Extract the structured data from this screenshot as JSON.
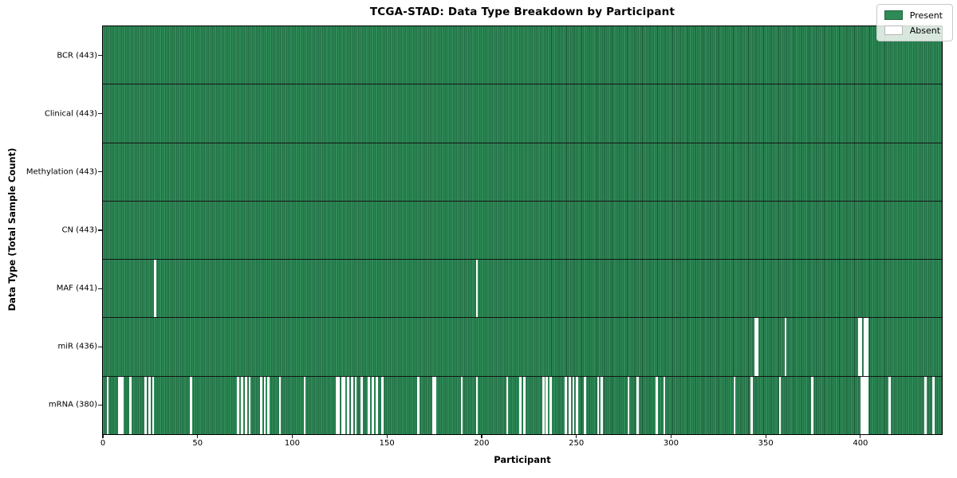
{
  "title": "TCGA-STAD: Data Type Breakdown by Participant",
  "chart_data": {
    "type": "heatmap",
    "title": "TCGA-STAD: Data Type Breakdown by Participant",
    "xlabel": "Participant",
    "ylabel": "Data Type (Total Sample Count)",
    "x_ticks": [
      0,
      50,
      100,
      150,
      200,
      250,
      300,
      350,
      400
    ],
    "x_range": [
      0,
      443
    ],
    "n_participants": 443,
    "grid": false,
    "legend_position": "upper-right",
    "colors": {
      "present": "#2e8b57",
      "present_edge": "#1b5134",
      "absent": "#ffffff",
      "row_divider": "#141414",
      "legend_bg": "#f2f2f2",
      "legend_border": "#c9c9c9"
    },
    "legend": [
      {
        "label": "Present",
        "value": "present"
      },
      {
        "label": "Absent",
        "value": "absent"
      }
    ],
    "rows": [
      {
        "label": "BCR (443)",
        "present_count": 443,
        "absent_participants": []
      },
      {
        "label": "Clinical (443)",
        "present_count": 443,
        "absent_participants": []
      },
      {
        "label": "Methylation (443)",
        "present_count": 443,
        "absent_participants": []
      },
      {
        "label": "CN (443)",
        "present_count": 443,
        "absent_participants": []
      },
      {
        "label": "MAF (441)",
        "present_count": 441,
        "absent_participants": [
          27,
          197
        ]
      },
      {
        "label": "miR (436)",
        "present_count": 436,
        "absent_participants": [
          344,
          345,
          360,
          399,
          400,
          402,
          403
        ]
      },
      {
        "label": "mRNA (380)",
        "present_count": 380,
        "absent_participants": [
          2,
          8,
          9,
          10,
          14,
          22,
          24,
          26,
          46,
          71,
          73,
          75,
          77,
          83,
          85,
          87,
          93,
          106,
          123,
          124,
          126,
          127,
          129,
          131,
          133,
          136,
          140,
          142,
          144,
          147,
          166,
          174,
          175,
          189,
          197,
          213,
          220,
          222,
          232,
          234,
          236,
          244,
          246,
          248,
          250,
          254,
          261,
          263,
          277,
          282,
          292,
          296,
          333,
          342,
          357,
          374,
          400,
          401,
          402,
          403,
          415,
          434,
          438
        ]
      }
    ]
  }
}
